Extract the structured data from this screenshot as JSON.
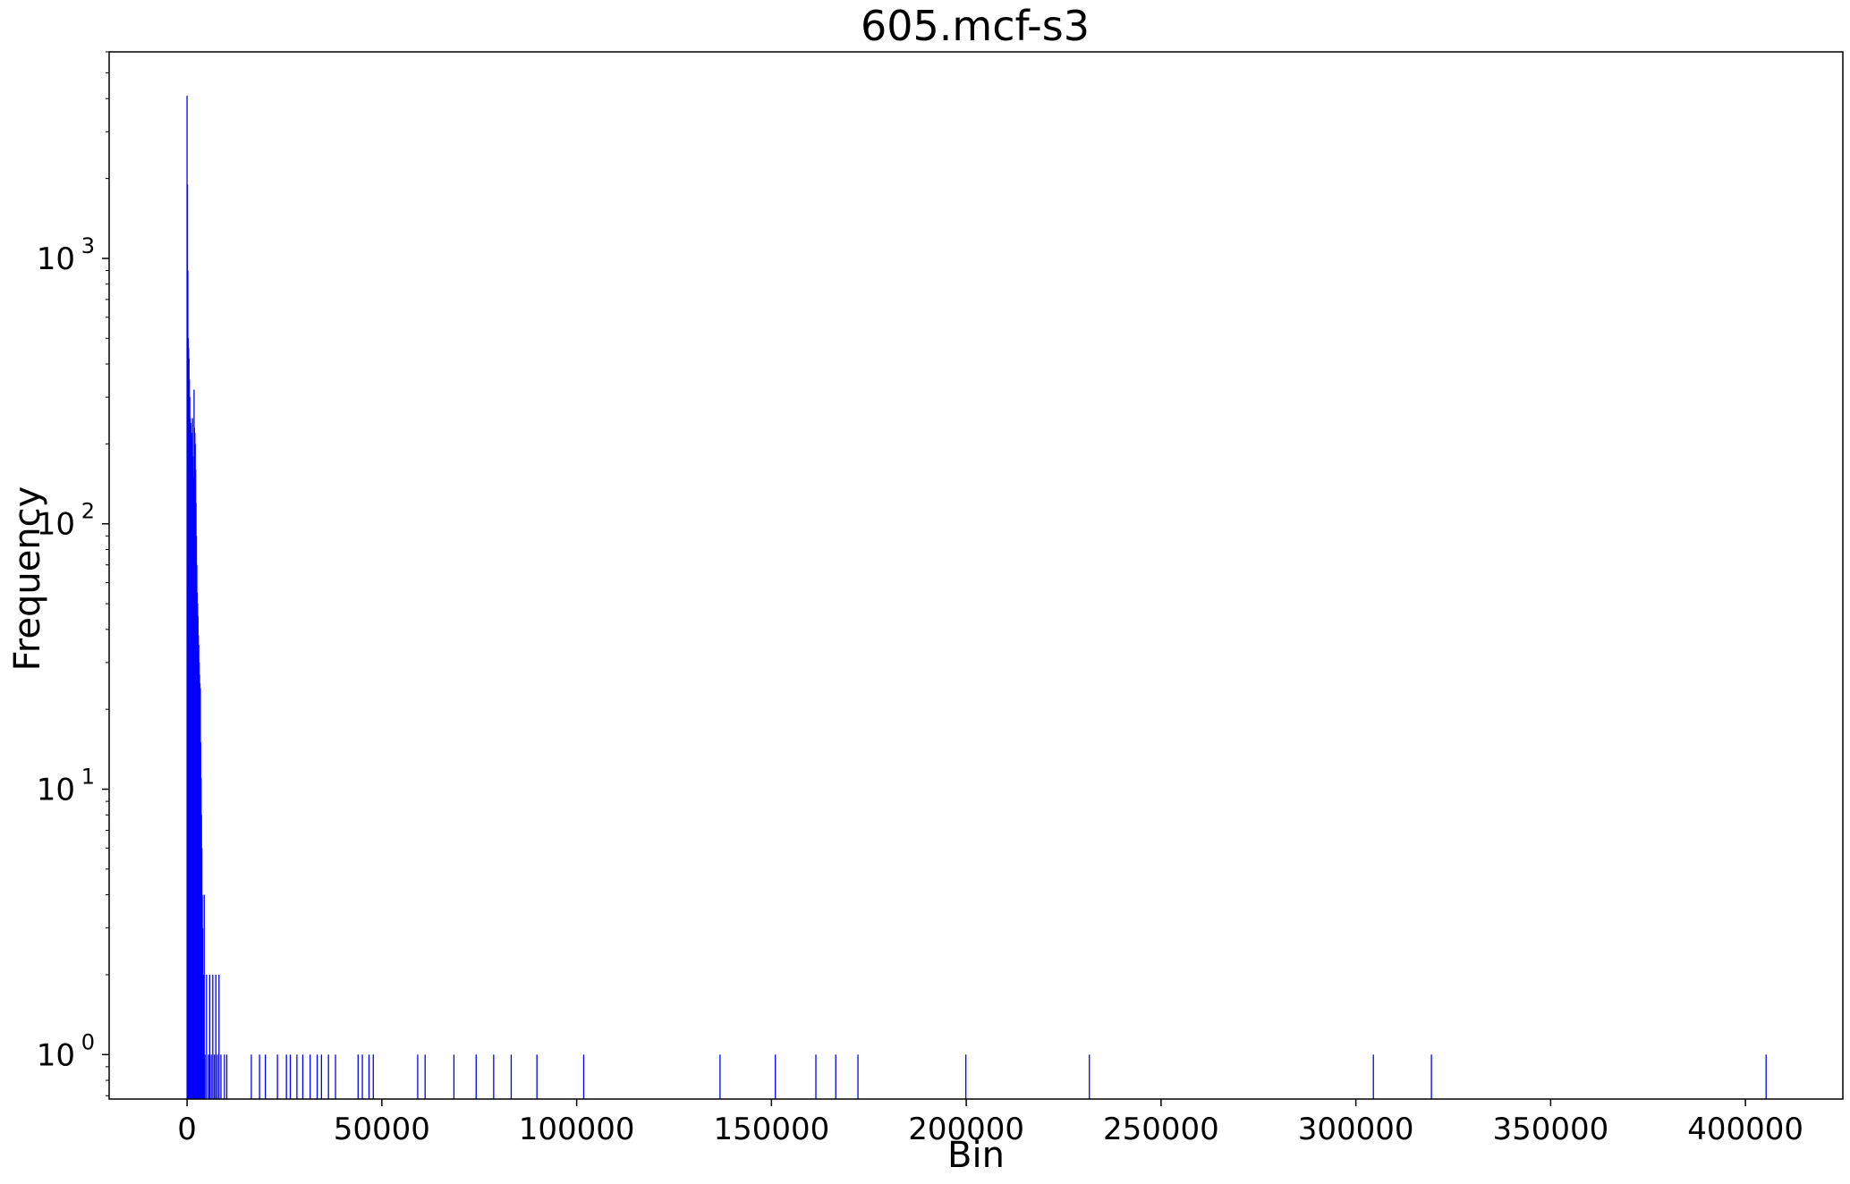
{
  "chart_data": {
    "type": "bar",
    "title": "605.mcf-s3",
    "xlabel": "Bin",
    "ylabel": "Frequency",
    "yscale": "log",
    "xlim": [
      -20000,
      425000
    ],
    "ylim": [
      0.68,
      6000
    ],
    "bar_color": "#0000ff",
    "grid": false,
    "x_ticks": [
      0,
      50000,
      100000,
      150000,
      200000,
      250000,
      300000,
      350000,
      400000
    ],
    "x_tick_labels": [
      "0",
      "50000",
      "100000",
      "150000",
      "200000",
      "250000",
      "300000",
      "350000",
      "400000"
    ],
    "y_ticks": [
      1,
      10,
      100,
      1000
    ],
    "y_tick_labels": [
      {
        "base": "10",
        "exp": "0"
      },
      {
        "base": "10",
        "exp": "1"
      },
      {
        "base": "10",
        "exp": "2"
      },
      {
        "base": "10",
        "exp": "3"
      }
    ],
    "bins": [
      {
        "x": 0,
        "y": 4100
      },
      {
        "x": 100,
        "y": 1900
      },
      {
        "x": 200,
        "y": 900
      },
      {
        "x": 300,
        "y": 500
      },
      {
        "x": 400,
        "y": 460
      },
      {
        "x": 500,
        "y": 420
      },
      {
        "x": 600,
        "y": 350
      },
      {
        "x": 700,
        "y": 300
      },
      {
        "x": 800,
        "y": 250
      },
      {
        "x": 900,
        "y": 230
      },
      {
        "x": 1000,
        "y": 240
      },
      {
        "x": 1100,
        "y": 220
      },
      {
        "x": 1200,
        "y": 200
      },
      {
        "x": 1300,
        "y": 210
      },
      {
        "x": 1400,
        "y": 250
      },
      {
        "x": 1500,
        "y": 180
      },
      {
        "x": 1600,
        "y": 150
      },
      {
        "x": 1700,
        "y": 120
      },
      {
        "x": 1800,
        "y": 320
      },
      {
        "x": 1900,
        "y": 230
      },
      {
        "x": 2000,
        "y": 220
      },
      {
        "x": 2100,
        "y": 200
      },
      {
        "x": 2200,
        "y": 160
      },
      {
        "x": 2300,
        "y": 120
      },
      {
        "x": 2400,
        "y": 90
      },
      {
        "x": 2500,
        "y": 70
      },
      {
        "x": 2600,
        "y": 55
      },
      {
        "x": 2700,
        "y": 50
      },
      {
        "x": 2800,
        "y": 45
      },
      {
        "x": 2900,
        "y": 38
      },
      {
        "x": 3000,
        "y": 35
      },
      {
        "x": 3100,
        "y": 30
      },
      {
        "x": 3200,
        "y": 27
      },
      {
        "x": 3300,
        "y": 25
      },
      {
        "x": 3400,
        "y": 24
      },
      {
        "x": 3500,
        "y": 15
      },
      {
        "x": 3600,
        "y": 11
      },
      {
        "x": 3700,
        "y": 8
      },
      {
        "x": 3800,
        "y": 6
      },
      {
        "x": 3900,
        "y": 4
      },
      {
        "x": 4000,
        "y": 3
      },
      {
        "x": 4200,
        "y": 2
      },
      {
        "x": 4400,
        "y": 4
      },
      {
        "x": 4600,
        "y": 1
      },
      {
        "x": 5000,
        "y": 2
      },
      {
        "x": 5500,
        "y": 1
      },
      {
        "x": 5800,
        "y": 2
      },
      {
        "x": 6200,
        "y": 1
      },
      {
        "x": 6600,
        "y": 2
      },
      {
        "x": 7000,
        "y": 1
      },
      {
        "x": 7400,
        "y": 2
      },
      {
        "x": 7800,
        "y": 1
      },
      {
        "x": 8200,
        "y": 2
      },
      {
        "x": 8700,
        "y": 1
      },
      {
        "x": 9600,
        "y": 1
      },
      {
        "x": 10200,
        "y": 1
      },
      {
        "x": 16500,
        "y": 1
      },
      {
        "x": 18600,
        "y": 1
      },
      {
        "x": 20100,
        "y": 1
      },
      {
        "x": 23200,
        "y": 1
      },
      {
        "x": 25500,
        "y": 1
      },
      {
        "x": 26500,
        "y": 1
      },
      {
        "x": 28200,
        "y": 1
      },
      {
        "x": 29700,
        "y": 1
      },
      {
        "x": 31600,
        "y": 1
      },
      {
        "x": 33400,
        "y": 1
      },
      {
        "x": 34500,
        "y": 1
      },
      {
        "x": 36300,
        "y": 1
      },
      {
        "x": 38100,
        "y": 1
      },
      {
        "x": 43900,
        "y": 1
      },
      {
        "x": 45000,
        "y": 1
      },
      {
        "x": 46700,
        "y": 1
      },
      {
        "x": 47800,
        "y": 1
      },
      {
        "x": 59200,
        "y": 1
      },
      {
        "x": 61100,
        "y": 1
      },
      {
        "x": 68500,
        "y": 1
      },
      {
        "x": 74200,
        "y": 1
      },
      {
        "x": 78700,
        "y": 1
      },
      {
        "x": 83200,
        "y": 1
      },
      {
        "x": 89800,
        "y": 1
      },
      {
        "x": 101800,
        "y": 1
      },
      {
        "x": 136800,
        "y": 1
      },
      {
        "x": 151000,
        "y": 1
      },
      {
        "x": 161400,
        "y": 1
      },
      {
        "x": 166500,
        "y": 1
      },
      {
        "x": 172200,
        "y": 1
      },
      {
        "x": 199900,
        "y": 1
      },
      {
        "x": 231600,
        "y": 1
      },
      {
        "x": 304500,
        "y": 1
      },
      {
        "x": 319400,
        "y": 1
      },
      {
        "x": 405300,
        "y": 1
      }
    ]
  }
}
